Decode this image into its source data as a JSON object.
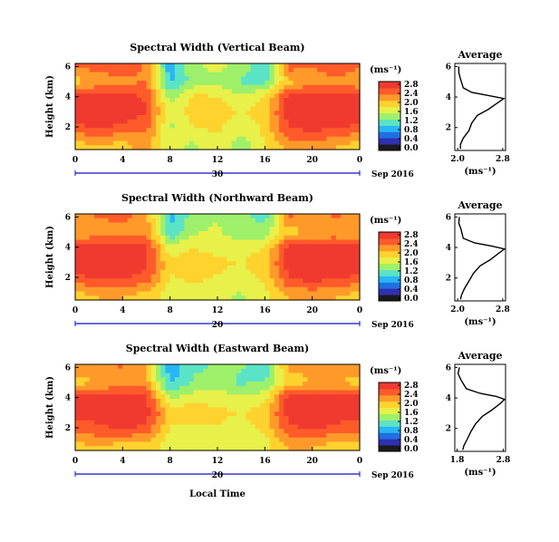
{
  "colors": {
    "scale": [
      "#1a1a1a",
      "#3030b0",
      "#1f6fe0",
      "#29b6f6",
      "#5be3c6",
      "#9ef06a",
      "#e8f04a",
      "#ffd22e",
      "#ff9a2a",
      "#ff5a2a",
      "#f03a30"
    ],
    "text": "#000000",
    "axis_blue": "#1010c0"
  },
  "panels": [
    {
      "title": "Spectral Width (Vertical Beam)",
      "ylabel": "Height (km)",
      "yticks": [
        "6",
        "4",
        "2"
      ],
      "xticks": [
        "0",
        "4",
        "8",
        "12",
        "16",
        "20",
        "0"
      ],
      "date_tick": "30",
      "date_label": "Sep 2016",
      "unit": "(ms⁻¹)",
      "cbar_ticks": [
        "2.8",
        "2.4",
        "2.0",
        "1.6",
        "1.2",
        "0.8",
        "0.4",
        "0.0"
      ],
      "avg_title": "Average",
      "avg_yticks": [
        "6",
        "4",
        "2"
      ],
      "avg_xticks": [
        "2.0",
        "2.8"
      ],
      "avg_xlabel": "(ms⁻¹)"
    },
    {
      "title": "Spectral Width (Northward Beam)",
      "ylabel": "Height (km)",
      "yticks": [
        "6",
        "4",
        "2"
      ],
      "xticks": [
        "0",
        "4",
        "8",
        "12",
        "16",
        "20",
        "0"
      ],
      "date_tick": "20",
      "date_label": "Sep 2016",
      "unit": "(ms⁻¹)",
      "cbar_ticks": [
        "2.8",
        "2.4",
        "2.0",
        "1.6",
        "1.2",
        "0.8",
        "0.4",
        "0.0"
      ],
      "avg_title": "Average",
      "avg_yticks": [
        "6",
        "4",
        "2"
      ],
      "avg_xticks": [
        "2.0",
        "2.8"
      ],
      "avg_xlabel": "(ms⁻¹)"
    },
    {
      "title": "Spectral Width (Eastward Beam)",
      "ylabel": "Height (km)",
      "yticks": [
        "6",
        "4",
        "2"
      ],
      "xticks": [
        "0",
        "4",
        "8",
        "12",
        "16",
        "20",
        "0"
      ],
      "date_tick": "20",
      "date_label": "Sep 2016",
      "unit": "(ms⁻¹)",
      "cbar_ticks": [
        "2.8",
        "2.4",
        "2.0",
        "1.6",
        "1.2",
        "0.8",
        "0.4",
        "0.0"
      ],
      "avg_title": "Average",
      "avg_yticks": [
        "6",
        "4",
        "2"
      ],
      "avg_xticks": [
        "1.8",
        "2.8"
      ],
      "avg_xlabel": "(ms⁻¹)"
    }
  ],
  "xlabel": "Local Time",
  "chart_data": [
    {
      "type": "heatmap",
      "title": "Spectral Width (Vertical Beam)",
      "ylabel": "Height (km)",
      "xlim": [
        0,
        24
      ],
      "ylim": [
        0.5,
        6.2
      ],
      "clim": [
        0.0,
        2.8
      ],
      "x": [
        0,
        2,
        4,
        6,
        8,
        10,
        12,
        14,
        16,
        18,
        20,
        22,
        24
      ],
      "y": [
        0.8,
        2.0,
        3.0,
        4.0,
        5.0,
        6.0
      ],
      "z": [
        [
          2.0,
          2.1,
          2.0,
          2.2,
          1.6,
          1.5,
          1.7,
          1.4,
          1.8,
          2.2,
          2.3,
          2.1,
          2.0
        ],
        [
          2.6,
          2.7,
          2.6,
          2.5,
          1.5,
          1.8,
          1.9,
          1.6,
          1.9,
          2.7,
          2.8,
          2.7,
          2.6
        ],
        [
          2.8,
          2.8,
          2.8,
          2.7,
          1.6,
          2.0,
          2.0,
          1.8,
          2.0,
          2.8,
          2.8,
          2.8,
          2.8
        ],
        [
          2.7,
          2.8,
          2.8,
          2.6,
          1.4,
          1.9,
          1.8,
          1.6,
          1.8,
          2.8,
          2.8,
          2.8,
          2.8
        ],
        [
          2.0,
          2.2,
          2.3,
          2.4,
          0.9,
          1.4,
          1.5,
          1.2,
          1.2,
          2.0,
          2.2,
          2.3,
          2.1
        ],
        [
          2.4,
          2.5,
          2.6,
          2.3,
          0.8,
          1.5,
          1.6,
          1.4,
          1.0,
          2.5,
          2.4,
          2.6,
          2.4
        ]
      ]
    },
    {
      "type": "heatmap",
      "title": "Spectral Width (Northward Beam)",
      "ylabel": "Height (km)",
      "xlim": [
        0,
        24
      ],
      "ylim": [
        0.5,
        6.2
      ],
      "clim": [
        0.0,
        2.8
      ],
      "x": [
        0,
        2,
        4,
        6,
        8,
        10,
        12,
        14,
        16,
        18,
        20,
        22,
        24
      ],
      "y": [
        0.8,
        2.0,
        3.0,
        4.0,
        5.0,
        6.0
      ],
      "z": [
        [
          2.0,
          2.1,
          2.1,
          2.0,
          1.7,
          1.6,
          1.6,
          1.5,
          1.7,
          2.1,
          2.2,
          2.1,
          2.0
        ],
        [
          2.6,
          2.7,
          2.7,
          2.6,
          1.8,
          1.9,
          1.8,
          1.7,
          1.9,
          2.7,
          2.8,
          2.7,
          2.6
        ],
        [
          2.8,
          2.8,
          2.8,
          2.7,
          1.9,
          2.0,
          1.9,
          1.8,
          2.0,
          2.8,
          2.8,
          2.8,
          2.8
        ],
        [
          2.7,
          2.8,
          2.8,
          2.7,
          1.6,
          1.8,
          1.7,
          1.7,
          1.8,
          2.8,
          2.8,
          2.7,
          2.7
        ],
        [
          2.1,
          2.2,
          2.2,
          2.3,
          1.0,
          1.5,
          1.6,
          1.3,
          1.4,
          2.0,
          2.1,
          2.2,
          2.1
        ],
        [
          2.3,
          2.4,
          2.5,
          2.2,
          0.9,
          1.4,
          1.5,
          1.4,
          1.1,
          2.4,
          2.3,
          2.4,
          2.3
        ]
      ]
    },
    {
      "type": "heatmap",
      "title": "Spectral Width (Eastward Beam)",
      "ylabel": "Height (km)",
      "xlim": [
        0,
        24
      ],
      "ylim": [
        0.5,
        6.2
      ],
      "clim": [
        0.0,
        2.8
      ],
      "x": [
        0,
        2,
        4,
        6,
        8,
        10,
        12,
        14,
        16,
        18,
        20,
        22,
        24
      ],
      "y": [
        0.8,
        2.0,
        3.0,
        4.0,
        5.0,
        6.0
      ],
      "z": [
        [
          2.0,
          2.1,
          2.0,
          2.0,
          1.7,
          1.6,
          1.7,
          1.6,
          1.7,
          2.1,
          2.1,
          2.0,
          2.0
        ],
        [
          2.5,
          2.6,
          2.7,
          2.6,
          1.8,
          1.8,
          1.8,
          1.7,
          1.9,
          2.6,
          2.7,
          2.6,
          2.5
        ],
        [
          2.8,
          2.8,
          2.8,
          2.8,
          2.0,
          2.0,
          1.9,
          1.8,
          2.0,
          2.8,
          2.8,
          2.8,
          2.8
        ],
        [
          2.7,
          2.8,
          2.8,
          2.7,
          1.5,
          1.7,
          1.7,
          1.6,
          1.7,
          2.8,
          2.8,
          2.8,
          2.7
        ],
        [
          2.0,
          2.1,
          2.2,
          2.2,
          0.9,
          1.3,
          1.4,
          1.2,
          1.3,
          1.9,
          2.1,
          2.1,
          2.0
        ],
        [
          2.2,
          2.3,
          2.4,
          2.1,
          0.8,
          1.2,
          1.3,
          1.3,
          1.0,
          2.2,
          2.2,
          2.3,
          2.2
        ]
      ]
    },
    {
      "type": "line",
      "title": "Average",
      "xlabel": "(ms⁻¹)",
      "xlim": [
        1.95,
        2.85
      ],
      "ylim": [
        0.5,
        6.2
      ],
      "series": [
        {
          "x": [
            2.02,
            2.02,
            2.05,
            2.1,
            2.25,
            2.55,
            2.82,
            2.7,
            2.55,
            2.35,
            2.25,
            2.2,
            2.1,
            2.05,
            2.05
          ],
          "y": [
            6.0,
            5.6,
            5.2,
            4.6,
            4.3,
            4.1,
            3.9,
            3.6,
            3.2,
            2.8,
            2.3,
            1.8,
            1.3,
            0.9,
            0.6
          ]
        }
      ]
    },
    {
      "type": "line",
      "title": "Average",
      "xlabel": "(ms⁻¹)",
      "xlim": [
        1.95,
        2.85
      ],
      "ylim": [
        0.5,
        6.2
      ],
      "series": [
        {
          "x": [
            2.03,
            2.02,
            2.06,
            2.1,
            2.3,
            2.6,
            2.83,
            2.72,
            2.58,
            2.4,
            2.28,
            2.2,
            2.12,
            2.07,
            2.05
          ],
          "y": [
            6.0,
            5.6,
            5.2,
            4.6,
            4.3,
            4.1,
            3.9,
            3.6,
            3.2,
            2.8,
            2.3,
            1.8,
            1.3,
            0.9,
            0.6
          ]
        }
      ]
    },
    {
      "type": "line",
      "title": "Average",
      "xlabel": "(ms⁻¹)",
      "xlim": [
        1.75,
        2.85
      ],
      "ylim": [
        0.5,
        6.2
      ],
      "series": [
        {
          "x": [
            1.85,
            1.82,
            1.88,
            2.0,
            2.3,
            2.65,
            2.83,
            2.72,
            2.55,
            2.35,
            2.2,
            2.1,
            2.02,
            1.95,
            1.92
          ],
          "y": [
            6.0,
            5.6,
            5.2,
            4.6,
            4.3,
            4.1,
            3.9,
            3.6,
            3.2,
            2.8,
            2.3,
            1.8,
            1.3,
            0.9,
            0.6
          ]
        }
      ]
    }
  ]
}
